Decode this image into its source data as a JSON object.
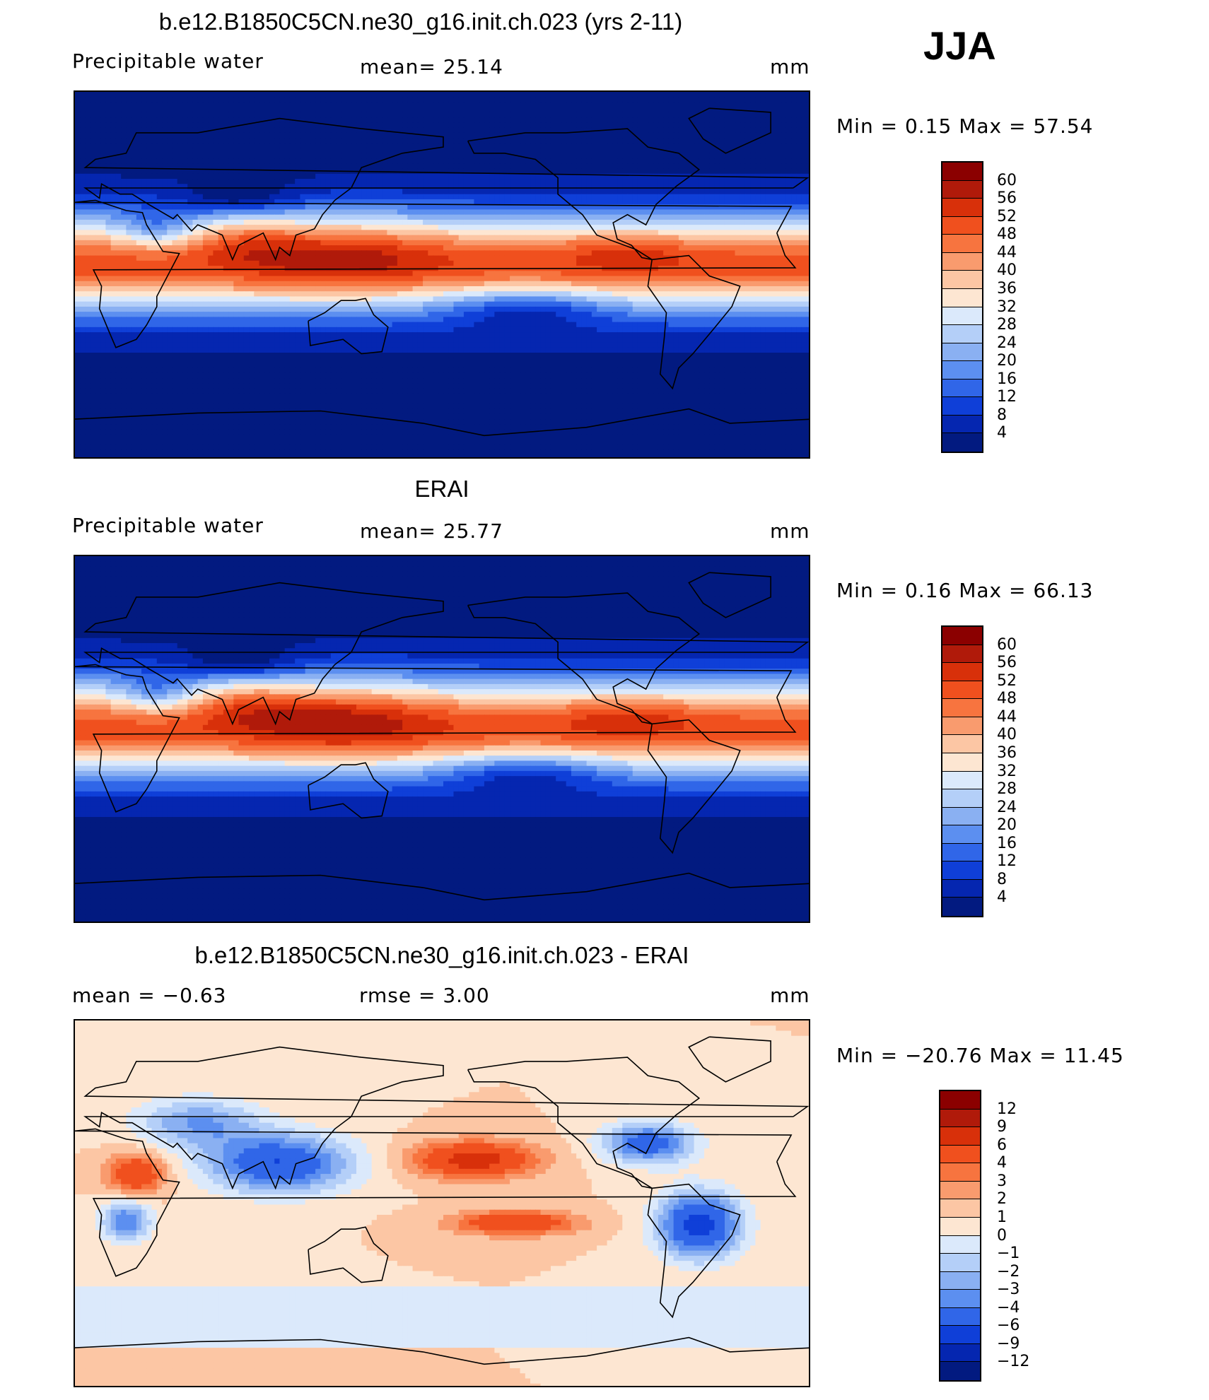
{
  "season": "JJA",
  "panels": [
    {
      "title": "b.e12.B1850C5CN.ne30_g16.init.ch.023 (yrs 2-11)",
      "left": "Precipitable  water",
      "center": "mean=   25.14",
      "right": "mm",
      "minmax": "Min  =     0.15  Max  =    57.54",
      "colorbar": {
        "levels": [
          "60",
          "56",
          "52",
          "48",
          "44",
          "40",
          "36",
          "32",
          "28",
          "24",
          "20",
          "16",
          "12",
          "8",
          "4"
        ],
        "colors": [
          "#8b0000",
          "#b01a0a",
          "#d8300a",
          "#f0501e",
          "#f7743f",
          "#f99b6e",
          "#fcc6a4",
          "#fde6d2",
          "#dbe9fb",
          "#b4cff8",
          "#8ab0f2",
          "#5c8ff0",
          "#3066e8",
          "#0f3fd8",
          "#0526b0",
          "#021a80"
        ]
      },
      "colorscale": "abs",
      "field_variant": "model"
    },
    {
      "title": "ERAI",
      "left": "Precipitable  water",
      "center": "mean=   25.77",
      "right": "mm",
      "minmax": "Min  =     0.16  Max  =    66.13",
      "colorbar": {
        "levels": [
          "60",
          "56",
          "52",
          "48",
          "44",
          "40",
          "36",
          "32",
          "28",
          "24",
          "20",
          "16",
          "12",
          "8",
          "4"
        ],
        "colors": [
          "#8b0000",
          "#b01a0a",
          "#d8300a",
          "#f0501e",
          "#f7743f",
          "#f99b6e",
          "#fcc6a4",
          "#fde6d2",
          "#dbe9fb",
          "#b4cff8",
          "#8ab0f2",
          "#5c8ff0",
          "#3066e8",
          "#0f3fd8",
          "#0526b0",
          "#021a80"
        ]
      },
      "colorscale": "abs",
      "field_variant": "obs"
    },
    {
      "title": "b.e12.B1850C5CN.ne30_g16.init.ch.023 - ERAI",
      "left": "mean  =    −0.63",
      "center": "rmse  =      3.00",
      "right": "mm",
      "minmax": "Min  =  −20.76  Max  =    11.45",
      "colorbar": {
        "levels": [
          "12",
          "9",
          "6",
          "4",
          "3",
          "2",
          "1",
          "0",
          "−1",
          "−2",
          "−3",
          "−4",
          "−6",
          "−9",
          "−12"
        ],
        "colors": [
          "#8b0000",
          "#b01a0a",
          "#d8300a",
          "#f0501e",
          "#f7743f",
          "#f99b6e",
          "#fcc6a4",
          "#fde6d2",
          "#dbe9fb",
          "#b4cff8",
          "#8ab0f2",
          "#5c8ff0",
          "#3066e8",
          "#0f3fd8",
          "#0526b0",
          "#021a80"
        ]
      },
      "colorscale": "diff",
      "field_variant": "diff"
    }
  ]
}
